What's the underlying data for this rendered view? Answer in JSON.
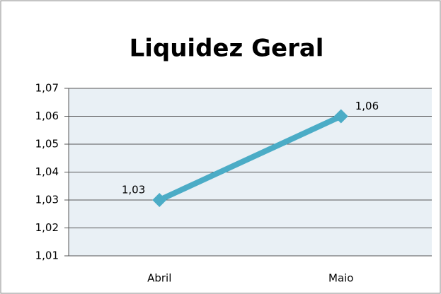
{
  "chart_data": {
    "type": "line",
    "title": "Liquidez Geral",
    "categories": [
      "Abril",
      "Maio"
    ],
    "series": [
      {
        "color": "#4bacc6",
        "values": [
          1.03,
          1.06
        ],
        "value_labels": [
          "1,03",
          "1,06"
        ]
      }
    ],
    "ylim": [
      1.01,
      1.07
    ],
    "yticks": [
      {
        "value": 1.01,
        "label": "1,01"
      },
      {
        "value": 1.02,
        "label": "1,02"
      },
      {
        "value": 1.03,
        "label": "1,03"
      },
      {
        "value": 1.04,
        "label": "1,04"
      },
      {
        "value": 1.05,
        "label": "1,05"
      },
      {
        "value": 1.06,
        "label": "1,06"
      },
      {
        "value": 1.07,
        "label": "1,07"
      }
    ],
    "grid": true
  }
}
